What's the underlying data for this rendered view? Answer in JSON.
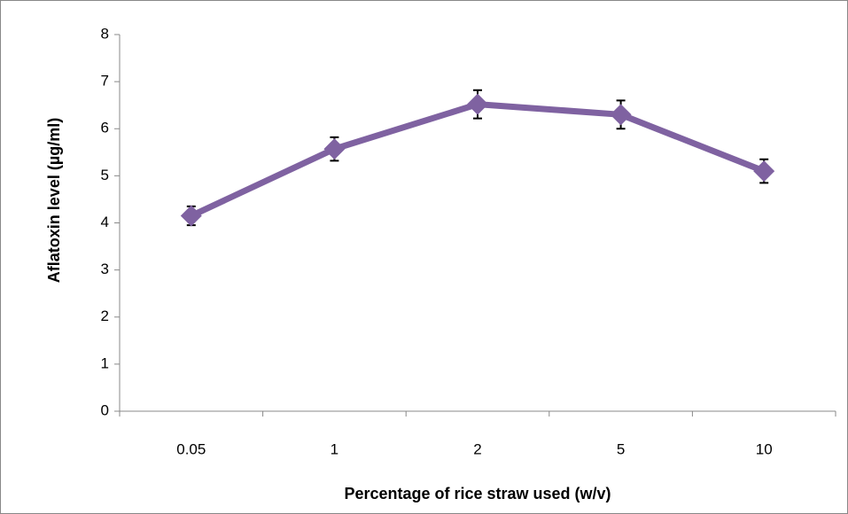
{
  "chart_data": {
    "type": "line",
    "x_label": "Percentage of rice straw used (w/v)",
    "y_label": "Aflatoxin level (µg/ml)",
    "categories": [
      "0.05",
      "1",
      "2",
      "5",
      "10"
    ],
    "series": [
      {
        "color": "#7f62a1",
        "values": [
          4.15,
          5.57,
          6.52,
          6.3,
          5.1
        ],
        "errors": [
          0.2,
          0.25,
          0.3,
          0.3,
          0.25
        ]
      }
    ],
    "ylim": [
      0,
      8
    ],
    "yticks": [
      0,
      1,
      2,
      3,
      4,
      5,
      6,
      7,
      8
    ],
    "grid": false
  }
}
